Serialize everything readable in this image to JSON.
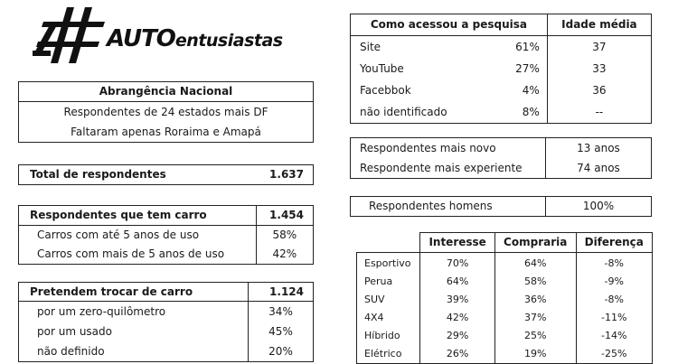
{
  "logo": {
    "brand_big": "AUTO",
    "brand_small": "entusiastas"
  },
  "abrangencia": {
    "title": "Abrangência Nacional",
    "line1": "Respondentes de 24 estados mais DF",
    "line2": "Faltaram apenas Roraima e Amapá"
  },
  "total": {
    "label": "Total de respondentes",
    "value": "1.637"
  },
  "carro": {
    "label": "Respondentes que tem carro",
    "value": "1.454",
    "rows": [
      {
        "label": "Carros com até 5 anos de uso",
        "value": "58%"
      },
      {
        "label": "Carros com mais de 5 anos de uso",
        "value": "42%"
      }
    ]
  },
  "trocar": {
    "label": "Pretendem trocar de carro",
    "value": "1.124",
    "rows": [
      {
        "label": "por um zero-quilômetro",
        "value": "34%"
      },
      {
        "label": "por um usado",
        "value": "45%"
      },
      {
        "label": "não definido",
        "value": "20%"
      }
    ]
  },
  "acesso": {
    "header_source": "Como acessou a pesquisa",
    "header_age": "Idade média",
    "rows": [
      {
        "source": "Site",
        "pct": "61%",
        "age": "37"
      },
      {
        "source": "YouTube",
        "pct": "27%",
        "age": "33"
      },
      {
        "source": "Facebbok",
        "pct": "4%",
        "age": "36"
      },
      {
        "source": "não identificado",
        "pct": "8%",
        "age": "--"
      }
    ]
  },
  "idades": {
    "rows": [
      {
        "label": "Respondentes mais novo",
        "value": "13 anos"
      },
      {
        "label": "Respondente mais experiente",
        "value": "74 anos"
      }
    ]
  },
  "homens": {
    "label": "Respondentes homens",
    "value": "100%"
  },
  "preferencias": {
    "headers": [
      "Interesse",
      "Compraria",
      "Diferença"
    ],
    "rows": [
      {
        "category": "Esportivo",
        "interesse": "70%",
        "compraria": "64%",
        "diferenca": "-8%"
      },
      {
        "category": "Perua",
        "interesse": "64%",
        "compraria": "58%",
        "diferenca": "-9%"
      },
      {
        "category": "SUV",
        "interesse": "39%",
        "compraria": "36%",
        "diferenca": "-8%"
      },
      {
        "category": "4X4",
        "interesse": "42%",
        "compraria": "37%",
        "diferenca": "-11%"
      },
      {
        "category": "Híbrido",
        "interesse": "29%",
        "compraria": "25%",
        "diferenca": "-14%"
      },
      {
        "category": "Elétrico",
        "interesse": "26%",
        "compraria": "19%",
        "diferenca": "-25%"
      }
    ]
  }
}
